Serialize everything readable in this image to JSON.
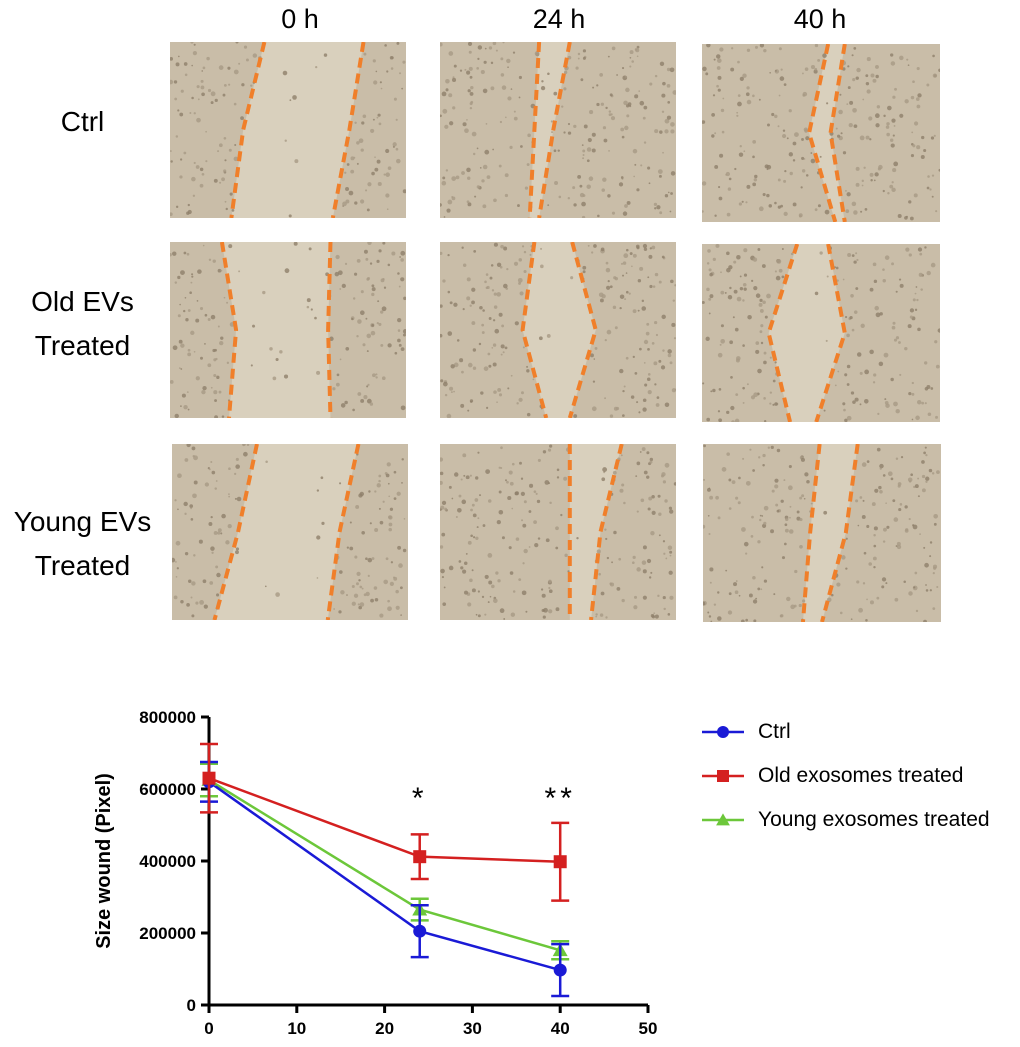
{
  "panel_grid": {
    "column_headers": [
      "0 h",
      "24 h",
      "40 h"
    ],
    "row_labels": [
      {
        "line1": "Ctrl",
        "line2": ""
      },
      {
        "line1": "Old EVs",
        "line2": "Treated"
      },
      {
        "line1": "Young EVs",
        "line2": "Treated"
      }
    ],
    "tile_color": "#c9bda8",
    "gap_color": "#d9d0bd",
    "dash_color": "#f07f2a"
  },
  "chart_data": {
    "type": "line",
    "ylabel": "Size wound (Pixel)",
    "xlabel": "",
    "xlim": [
      0,
      50
    ],
    "ylim": [
      0,
      800000
    ],
    "x_ticks": [
      0,
      10,
      20,
      30,
      40,
      50
    ],
    "y_ticks": [
      0,
      200000,
      400000,
      600000,
      800000
    ],
    "x_tick_labels": [
      "0",
      "10",
      "20",
      "30",
      "40",
      "50"
    ],
    "y_tick_labels": [
      "0",
      "200000",
      "400000",
      "600000",
      "800000"
    ],
    "x": [
      0,
      24,
      40
    ],
    "series": [
      {
        "name": "Ctrl",
        "color": "#1a1ad6",
        "marker": "circle",
        "values": [
          620000,
          205000,
          97000
        ],
        "errors": [
          55000,
          72000,
          72000
        ]
      },
      {
        "name": "Old exosomes treated",
        "color": "#d42020",
        "marker": "square",
        "values": [
          630000,
          412000,
          398000
        ],
        "errors": [
          95000,
          62000,
          108000
        ]
      },
      {
        "name": "Young exosomes treated",
        "color": "#6cc73a",
        "marker": "triangle",
        "values": [
          625000,
          265000,
          152000
        ],
        "errors": [
          45000,
          30000,
          25000
        ]
      }
    ],
    "annotations": [
      {
        "text": "*",
        "x": 24
      },
      {
        "text": "**",
        "x": 40
      }
    ],
    "legend_position": "right"
  }
}
